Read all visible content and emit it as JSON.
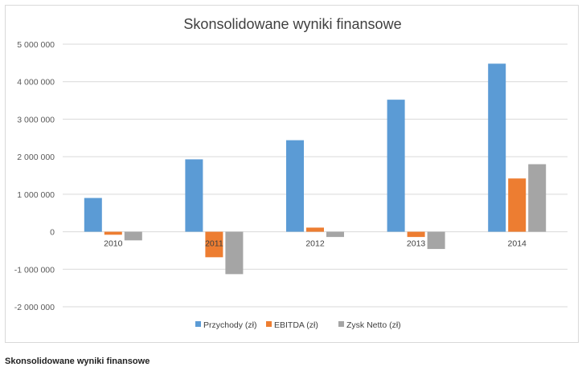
{
  "caption": "Skonsolidowane wyniki finansowe",
  "chart_data": {
    "type": "bar",
    "title": "Skonsolidowane wyniki finansowe",
    "xlabel": "",
    "ylabel": "",
    "categories": [
      "2010",
      "2011",
      "2012",
      "2013",
      "2014"
    ],
    "ylim": [
      -2000000,
      5000000
    ],
    "yticks": [
      5000000,
      4000000,
      3000000,
      2000000,
      1000000,
      0,
      -1000000,
      -2000000
    ],
    "ytick_labels": [
      "5 000 000",
      "4 000 000",
      "3 000 000",
      "2 000 000",
      "1 000 000",
      "0",
      "-1 000 000",
      "-2 000 000"
    ],
    "grid": true,
    "legend_position": "bottom",
    "series": [
      {
        "name": "Przychody (zł)",
        "color": "#5b9bd5",
        "values": [
          900000,
          1930000,
          2440000,
          3520000,
          4480000
        ]
      },
      {
        "name": "EBITDA (zł)",
        "color": "#ed7d31",
        "values": [
          -80000,
          -680000,
          110000,
          -140000,
          1420000
        ]
      },
      {
        "name": "Zysk Netto (zł)",
        "color": "#a5a5a5",
        "values": [
          -230000,
          -1130000,
          -140000,
          -460000,
          1800000
        ]
      }
    ]
  }
}
